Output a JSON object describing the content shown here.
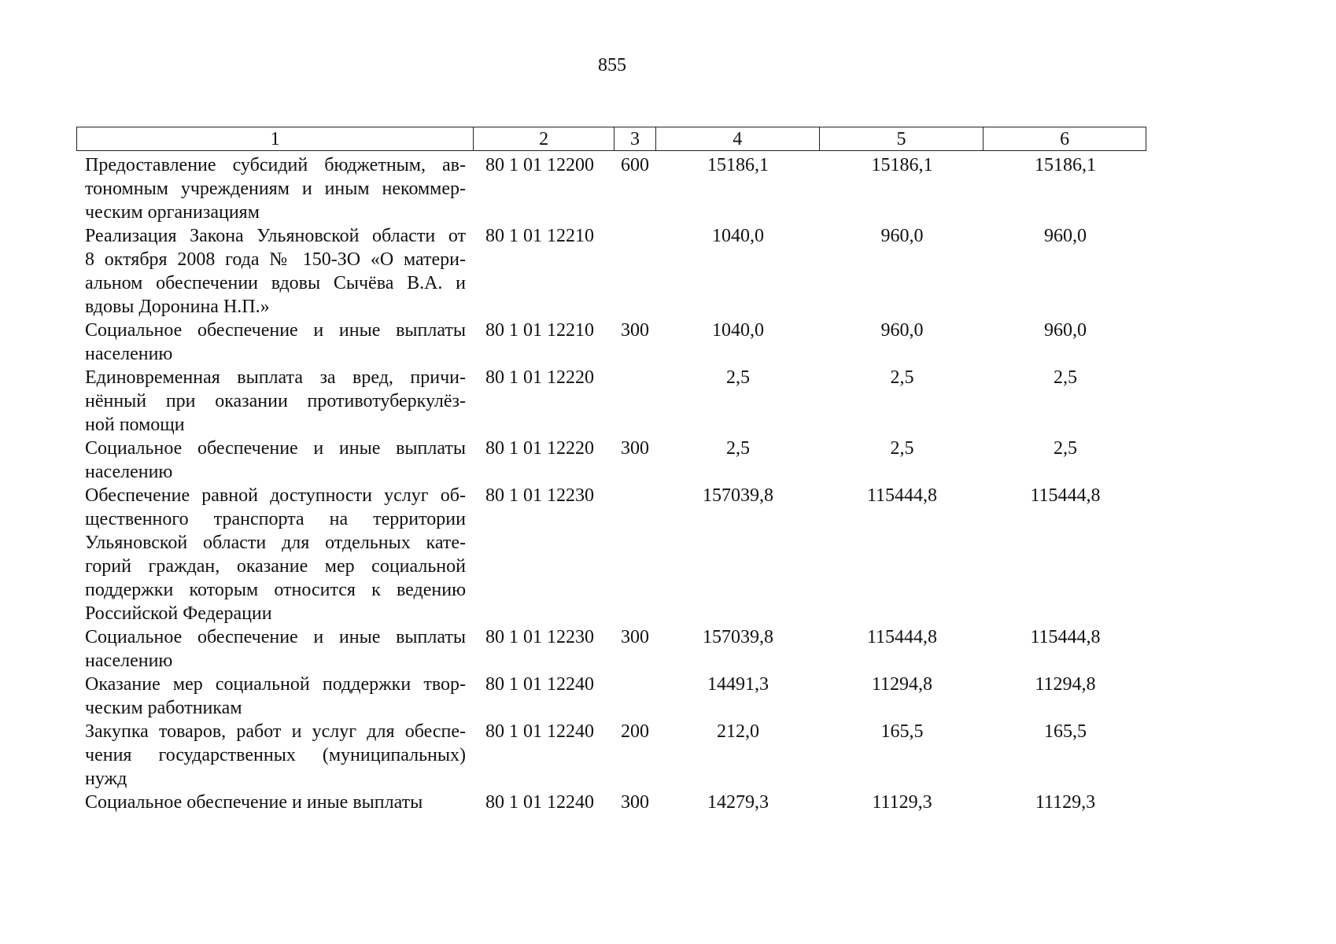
{
  "page_number": "855",
  "table": {
    "headers": [
      "1",
      "2",
      "3",
      "4",
      "5",
      "6"
    ],
    "rows": [
      {
        "lines": [
          "Предоставление субсидий бюджетным, ав-",
          "тономным учреждениям и иным некоммер-",
          "ческим организациям"
        ],
        "code": "80 1 01 12200",
        "type": "600",
        "v4": "15186,1",
        "v5": "15186,1",
        "v6": "15186,1"
      },
      {
        "lines": [
          "Реализация Закона Ульяновской области от",
          "8 октября 2008 года № 150-ЗО «О матери-",
          "альном обеспечении вдовы Сычёва В.А. и",
          "вдовы Доронина Н.П.»"
        ],
        "code": "80 1 01 12210",
        "type": "",
        "v4": "1040,0",
        "v5": "960,0",
        "v6": "960,0"
      },
      {
        "lines": [
          "Социальное обеспечение и иные выплаты",
          "населению"
        ],
        "code": "80 1 01 12210",
        "type": "300",
        "v4": "1040,0",
        "v5": "960,0",
        "v6": "960,0"
      },
      {
        "lines": [
          "Единовременная выплата за вред, причи-",
          "нённый при оказании противотуберкулёз-",
          "ной помощи"
        ],
        "code": "80 1 01 12220",
        "type": "",
        "v4": "2,5",
        "v5": "2,5",
        "v6": "2,5"
      },
      {
        "lines": [
          "Социальное обеспечение и иные выплаты",
          "населению"
        ],
        "code": "80 1 01 12220",
        "type": "300",
        "v4": "2,5",
        "v5": "2,5",
        "v6": "2,5"
      },
      {
        "lines": [
          "Обеспечение равной доступности услуг об-",
          "щественного транспорта на территории",
          "Ульяновской области для отдельных кате-",
          "горий граждан, оказание мер социальной",
          "поддержки которым относится к ведению",
          "Российской Федерации"
        ],
        "code": "80 1 01 12230",
        "type": "",
        "v4": "157039,8",
        "v5": "115444,8",
        "v6": "115444,8"
      },
      {
        "lines": [
          "Социальное обеспечение и иные выплаты",
          "населению"
        ],
        "code": "80 1 01 12230",
        "type": "300",
        "v4": "157039,8",
        "v5": "115444,8",
        "v6": "115444,8"
      },
      {
        "lines": [
          "Оказание мер социальной поддержки твор-",
          "ческим работникам"
        ],
        "code": "80 1 01 12240",
        "type": "",
        "v4": "14491,3",
        "v5": "11294,8",
        "v6": "11294,8"
      },
      {
        "lines": [
          "Закупка товаров, работ и услуг для обеспе-",
          "чения государственных (муниципальных)",
          "нужд"
        ],
        "code": "80 1 01 12240",
        "type": "200",
        "v4": "212,0",
        "v5": "165,5",
        "v6": "165,5"
      },
      {
        "lines": [
          "Социальное обеспечение и иные выплаты"
        ],
        "code": "80 1 01 12240",
        "type": "300",
        "v4": "14279,3",
        "v5": "11129,3",
        "v6": "11129,3"
      }
    ]
  }
}
